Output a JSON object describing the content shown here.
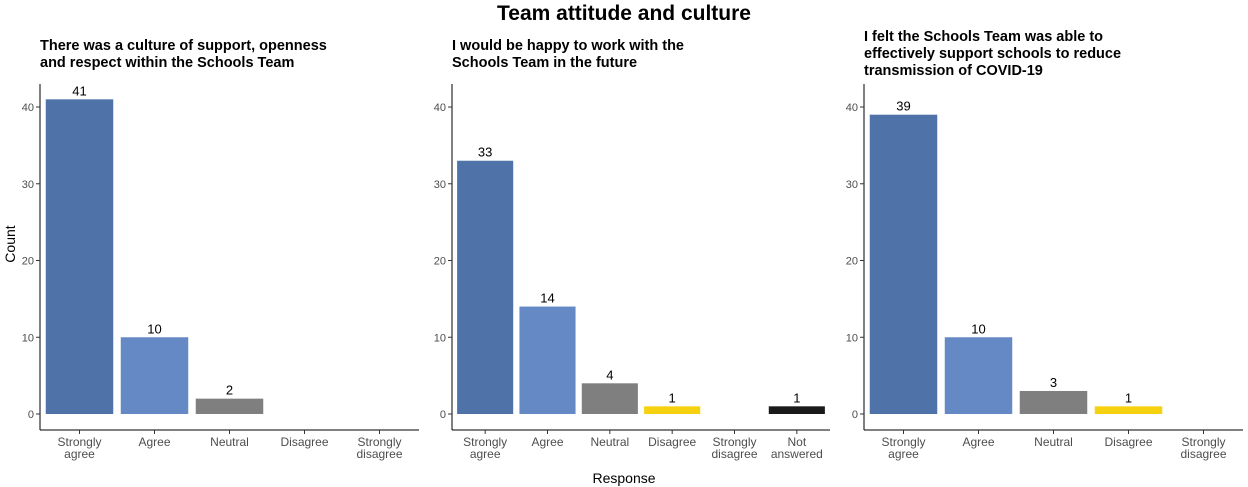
{
  "title": "Team attitude and culture",
  "xlabel": "Response",
  "ylabel": "Count",
  "colors": {
    "Strongly agree": "#4f72a8",
    "Agree": "#6589c4",
    "Neutral": "#7f7f7f",
    "Disagree": "#f6d10f",
    "Strongly disagree": "#bbbbbb",
    "Not answered": "#1a1a1a"
  },
  "chart_data": [
    {
      "type": "bar",
      "title_lines": [
        "There was a culture of support, openness",
        "and respect within the Schools Team"
      ],
      "categories": [
        "Strongly agree",
        "Agree",
        "Neutral",
        "Disagree",
        "Strongly disagree"
      ],
      "category_labels": [
        [
          "Strongly",
          "agree"
        ],
        [
          "Agree"
        ],
        [
          "Neutral"
        ],
        [
          "Disagree"
        ],
        [
          "Strongly",
          "disagree"
        ]
      ],
      "values": [
        41,
        10,
        2,
        0,
        0
      ],
      "ylim": [
        0,
        43
      ],
      "yticks": [
        0,
        10,
        20,
        30,
        40
      ],
      "show_ylabel": true
    },
    {
      "type": "bar",
      "title_lines": [
        "I would be happy to work with the",
        "Schools Team in the future"
      ],
      "categories": [
        "Strongly agree",
        "Agree",
        "Neutral",
        "Disagree",
        "Strongly disagree",
        "Not answered"
      ],
      "category_labels": [
        [
          "Strongly",
          "agree"
        ],
        [
          "Agree"
        ],
        [
          "Neutral"
        ],
        [
          "Disagree"
        ],
        [
          "Strongly",
          "disagree"
        ],
        [
          "Not",
          "answered"
        ]
      ],
      "values": [
        33,
        14,
        4,
        1,
        0,
        1
      ],
      "ylim": [
        0,
        43
      ],
      "yticks": [
        0,
        10,
        20,
        30,
        40
      ],
      "show_ylabel": false
    },
    {
      "type": "bar",
      "title_lines": [
        "I felt the Schools Team was able to",
        "effectively support schools to reduce",
        "transmission of COVID-19"
      ],
      "categories": [
        "Strongly agree",
        "Agree",
        "Neutral",
        "Disagree",
        "Strongly disagree"
      ],
      "category_labels": [
        [
          "Strongly",
          "agree"
        ],
        [
          "Agree"
        ],
        [
          "Neutral"
        ],
        [
          "Disagree"
        ],
        [
          "Strongly",
          "disagree"
        ]
      ],
      "values": [
        39,
        10,
        3,
        1,
        0
      ],
      "ylim": [
        0,
        43
      ],
      "yticks": [
        0,
        10,
        20,
        30,
        40
      ],
      "show_ylabel": false
    }
  ]
}
